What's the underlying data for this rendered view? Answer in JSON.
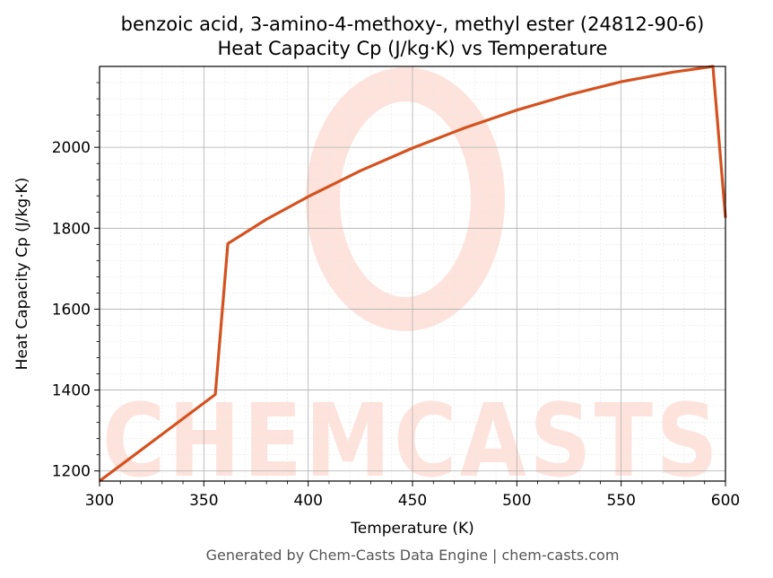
{
  "chart_data": {
    "type": "line",
    "title_line1": "benzoic acid, 3-amino-4-methoxy-, methyl ester (24812-90-6)",
    "title_line2": "Heat Capacity Cp (J/kg·K) vs Temperature",
    "xlabel": "Temperature (K)",
    "ylabel": "Heat Capacity Cp (J/kg·K)",
    "xlim": [
      300,
      600
    ],
    "ylim": [
      1175,
      2200
    ],
    "x_ticks": [
      300,
      350,
      400,
      450,
      500,
      550,
      600
    ],
    "y_ticks": [
      1200,
      1400,
      1600,
      1800,
      2000
    ],
    "x_tick_labels": [
      "300",
      "350",
      "400",
      "450",
      "500",
      "550",
      "600"
    ],
    "y_tick_labels": [
      "1200",
      "1400",
      "1600",
      "1800",
      "2000"
    ],
    "grid": true,
    "series": [
      {
        "color": "#d4521f",
        "x": [
          300,
          355.5,
          361.5,
          380,
          400,
          425,
          450,
          475,
          500,
          525,
          550,
          575,
          594,
          600
        ],
        "y": [
          1175,
          1389,
          1762,
          1822,
          1878,
          1942,
          1998,
          2048,
          2092,
          2130,
          2162,
          2186,
          2200,
          1826
        ]
      }
    ]
  },
  "watermark": {
    "text": "CHEMCASTS",
    "color": "#fde3dc"
  },
  "footer": "Generated by Chem-Casts Data Engine | chem-casts.com"
}
